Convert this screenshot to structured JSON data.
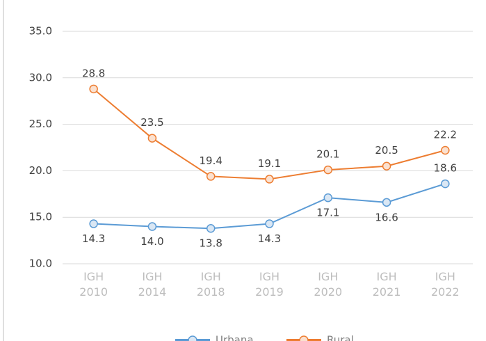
{
  "chart_data": {
    "type": "line",
    "categories": [
      "IGH 2010",
      "IGH 2014",
      "IGH 2018",
      "IGH 2019",
      "IGH 2020",
      "IGH 2021",
      "IGH 2022"
    ],
    "series": [
      {
        "name": "Urbana",
        "color": "#5b9bd5",
        "values": [
          14.3,
          14.0,
          13.8,
          14.3,
          17.1,
          16.6,
          18.6
        ],
        "value_labels": [
          "14.3",
          "14.0",
          "13.8",
          "14.3",
          "17.1",
          "16.6",
          "18.6"
        ]
      },
      {
        "name": "Rural",
        "color": "#ed7d31",
        "values": [
          28.8,
          23.5,
          19.4,
          19.1,
          20.1,
          20.5,
          22.2
        ],
        "value_labels": [
          "28.8",
          "23.5",
          "19.4",
          "19.1",
          "20.1",
          "20.5",
          "22.2"
        ]
      }
    ],
    "ylim": [
      10,
      35
    ],
    "yticks": [
      {
        "value": 10,
        "label": "10.0"
      },
      {
        "value": 15,
        "label": "15.0"
      },
      {
        "value": 20,
        "label": "20.0"
      },
      {
        "value": 25,
        "label": "25.0"
      },
      {
        "value": 30,
        "label": "30.0"
      },
      {
        "value": 35,
        "label": "35.0"
      }
    ],
    "grid": true
  }
}
